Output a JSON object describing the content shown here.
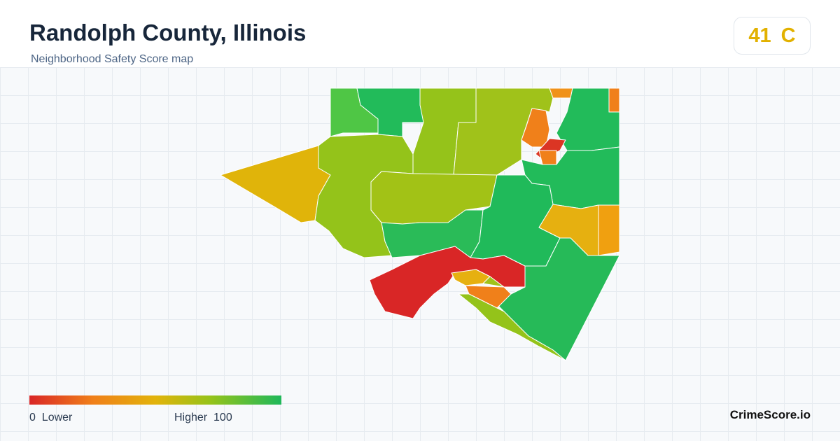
{
  "header": {
    "title": "Randolph County, Illinois",
    "subtitle": "Neighborhood Safety Score map"
  },
  "score": {
    "value": 41,
    "grade": "C"
  },
  "legend": {
    "min": 0,
    "min_label": "Lower",
    "max_label": "Higher",
    "max": 100
  },
  "brand": "CrimeScore.io"
}
